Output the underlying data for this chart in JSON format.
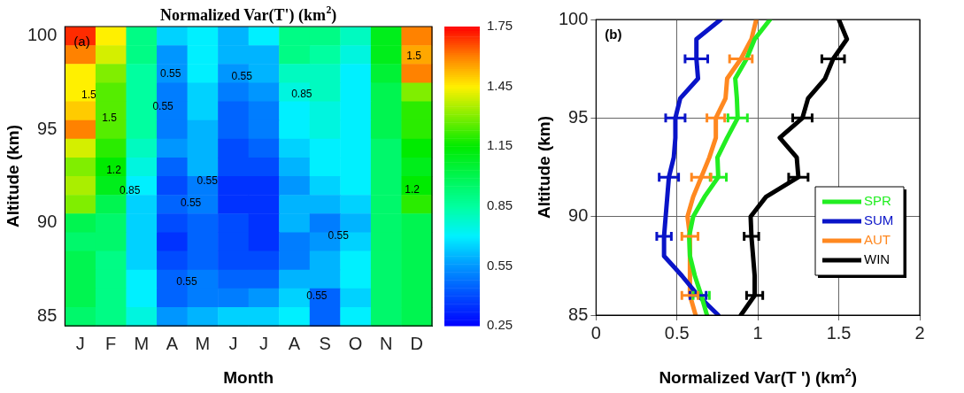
{
  "chart_data": [
    {
      "type": "heatmap",
      "title": "Normalized Var(T') (km$^{2}$)",
      "xlabel": "Month",
      "ylabel": "Altitude (km)",
      "categories": [
        "J",
        "F",
        "M",
        "A",
        "M",
        "J",
        "J",
        "A",
        "S",
        "O",
        "N",
        "D"
      ],
      "y_categories": [
        "100",
        null,
        null,
        null,
        null,
        "95",
        null,
        null,
        null,
        null,
        "90",
        null,
        null,
        null,
        null,
        "85"
      ],
      "cells": [
        [
          1.7,
          1.45,
          0.9,
          0.65,
          0.7,
          0.6,
          0.7,
          0.9,
          0.9,
          0.8,
          1.1,
          1.6
        ],
        [
          1.6,
          1.4,
          0.9,
          0.55,
          0.7,
          0.6,
          0.6,
          0.9,
          0.85,
          0.75,
          1.1,
          1.55
        ],
        [
          1.45,
          1.3,
          0.85,
          0.55,
          0.7,
          0.55,
          0.6,
          0.8,
          0.8,
          0.7,
          1.05,
          1.6
        ],
        [
          1.45,
          1.25,
          0.85,
          0.5,
          0.65,
          0.5,
          0.55,
          0.75,
          0.8,
          0.7,
          1.0,
          1.3
        ],
        [
          1.5,
          1.25,
          0.85,
          0.5,
          0.65,
          0.45,
          0.5,
          0.7,
          0.75,
          0.7,
          1.0,
          1.2
        ],
        [
          1.6,
          1.25,
          0.85,
          0.5,
          0.6,
          0.45,
          0.5,
          0.7,
          0.75,
          0.7,
          1.0,
          1.2
        ],
        [
          1.4,
          1.2,
          0.8,
          0.55,
          0.6,
          0.4,
          0.45,
          0.65,
          0.7,
          0.7,
          0.95,
          1.15
        ],
        [
          1.3,
          1.15,
          0.75,
          0.45,
          0.6,
          0.4,
          0.4,
          0.6,
          0.7,
          0.7,
          0.95,
          1.1
        ],
        [
          1.35,
          1.1,
          0.7,
          0.4,
          0.5,
          0.35,
          0.35,
          0.55,
          0.65,
          0.7,
          0.95,
          1.15
        ],
        [
          1.3,
          1.0,
          0.65,
          0.45,
          0.5,
          0.35,
          0.35,
          0.6,
          0.6,
          0.65,
          0.95,
          1.2
        ],
        [
          1.0,
          0.95,
          0.65,
          0.4,
          0.45,
          0.4,
          0.35,
          0.6,
          0.5,
          0.6,
          0.95,
          1.0
        ],
        [
          0.95,
          0.95,
          0.65,
          0.35,
          0.45,
          0.4,
          0.35,
          0.5,
          0.55,
          0.65,
          0.95,
          1.0
        ],
        [
          1.0,
          0.9,
          0.65,
          0.4,
          0.45,
          0.4,
          0.4,
          0.5,
          0.6,
          0.7,
          0.95,
          1.0
        ],
        [
          1.0,
          0.9,
          0.7,
          0.45,
          0.5,
          0.45,
          0.45,
          0.6,
          0.6,
          0.7,
          0.95,
          1.0
        ],
        [
          1.0,
          0.9,
          0.7,
          0.45,
          0.5,
          0.5,
          0.55,
          0.65,
          0.45,
          0.65,
          0.95,
          1.0
        ],
        [
          0.95,
          0.9,
          0.75,
          0.55,
          0.6,
          0.65,
          0.65,
          0.7,
          0.45,
          0.7,
          0.95,
          1.0
        ]
      ],
      "clim": [
        0.25,
        1.75
      ],
      "cticks": [
        0.25,
        0.55,
        0.85,
        1.15,
        1.45,
        1.75
      ],
      "annotations": [
        "(a)",
        "1.5",
        "1.5",
        "1.2",
        "0.85",
        "0.55",
        "0.55",
        "0.55",
        "0.55",
        "0.55",
        "0.85",
        "0.55",
        "0.55",
        "0.55",
        "1.5",
        "1.2"
      ]
    },
    {
      "type": "line",
      "orientation": "horizontal",
      "xlabel": "Normalized Var(T ') (km$^{2}$)",
      "ylabel": "Altitude (km)",
      "x": [
        85,
        86,
        87,
        88,
        89,
        90,
        91,
        92,
        93,
        94,
        95,
        96,
        97,
        98,
        99,
        100
      ],
      "xlim": [
        0,
        2
      ],
      "xticks": [
        0,
        0.5,
        1,
        1.5,
        2
      ],
      "ylim": [
        85,
        100
      ],
      "yticks": [
        85,
        90,
        95,
        100
      ],
      "grid": true,
      "legend": "bottom right",
      "annotations": [
        "(b)"
      ],
      "series": [
        {
          "name": "SPR",
          "color": "#22ee22",
          "values": [
            0.685,
            0.65,
            0.61,
            0.58,
            0.575,
            0.6,
            0.67,
            0.755,
            0.75,
            0.81,
            0.875,
            0.87,
            0.86,
            0.93,
            0.98,
            1.075
          ],
          "errors": [
            null,
            0.05,
            null,
            null,
            null,
            null,
            null,
            0.05,
            null,
            null,
            0.06,
            null,
            null,
            null,
            null,
            null
          ]
        },
        {
          "name": "SUM",
          "color": "#0a14c8",
          "values": [
            0.755,
            0.63,
            0.53,
            0.42,
            0.42,
            0.43,
            0.44,
            0.45,
            0.48,
            0.49,
            0.49,
            0.52,
            0.63,
            0.62,
            0.62,
            0.77
          ],
          "errors": [
            null,
            0.05,
            null,
            null,
            0.045,
            null,
            null,
            0.06,
            null,
            null,
            0.06,
            null,
            null,
            0.07,
            null,
            null
          ]
        },
        {
          "name": "AUT",
          "color": "#ff8820",
          "values": [
            0.615,
            0.58,
            0.58,
            0.58,
            0.58,
            0.565,
            0.6,
            0.65,
            0.7,
            0.74,
            0.74,
            0.8,
            0.81,
            0.895,
            0.96,
            0.99
          ],
          "errors": [
            null,
            0.05,
            null,
            null,
            0.05,
            null,
            null,
            0.06,
            null,
            null,
            0.055,
            null,
            null,
            0.07,
            null,
            null
          ]
        },
        {
          "name": "WIN",
          "color": "#000000",
          "values": [
            0.895,
            0.98,
            0.98,
            0.97,
            0.96,
            0.955,
            1.05,
            1.25,
            1.24,
            1.135,
            1.275,
            1.31,
            1.415,
            1.465,
            1.55,
            1.5
          ],
          "errors": [
            null,
            0.05,
            null,
            null,
            0.045,
            null,
            null,
            0.06,
            null,
            null,
            0.06,
            null,
            null,
            0.07,
            null,
            null
          ]
        }
      ]
    }
  ]
}
